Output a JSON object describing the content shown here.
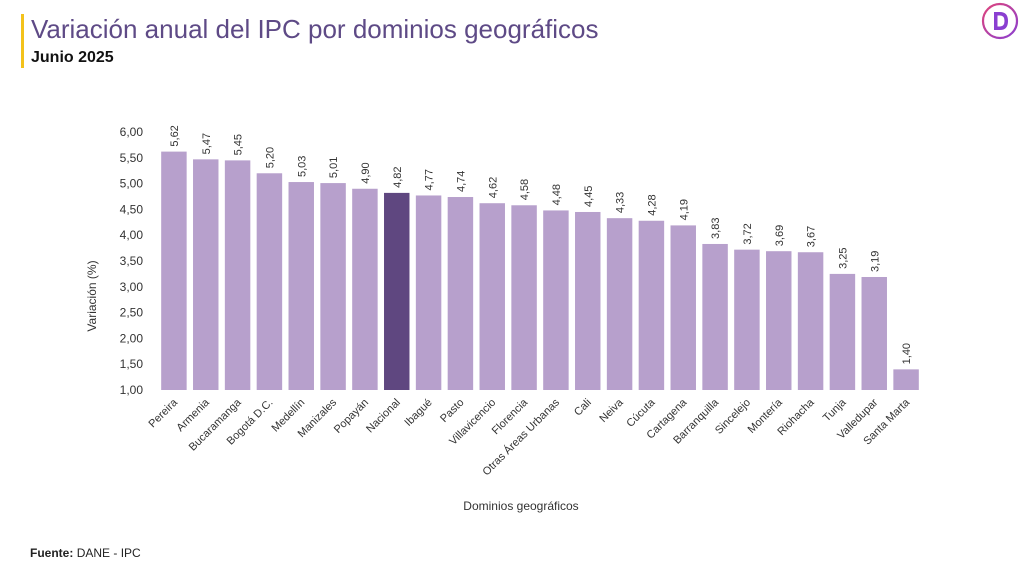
{
  "header": {
    "title": "Variación anual del IPC por dominios geográficos",
    "subtitle": "Junio 2025"
  },
  "footer": {
    "source_label": "Fuente:",
    "source_text": "DANE - IPC"
  },
  "logo": {
    "icon": "d-logo-icon",
    "colors": [
      "#e0447a",
      "#8a3fd1"
    ]
  },
  "colors": {
    "bar": "#b7a0cc",
    "highlight": "#5f4780",
    "title": "#5e4a86",
    "accent": "#f3c21b"
  },
  "chart_data": {
    "type": "bar",
    "xlabel": "Dominios geográficos",
    "ylabel": "Variación (%)",
    "ylim": [
      1.0,
      6.0
    ],
    "yticks": [
      "1,00",
      "1,50",
      "2,00",
      "2,50",
      "3,00",
      "3,50",
      "4,00",
      "4,50",
      "5,00",
      "5,50",
      "6,00"
    ],
    "grid": false,
    "highlight_category": "Nacional",
    "categories": [
      "Pereira",
      "Armenia",
      "Bucaramanga",
      "Bogotá D.C.",
      "Medellín",
      "Manizales",
      "Popayán",
      "Nacional",
      "Ibagué",
      "Pasto",
      "Villavicencio",
      "Florencia",
      "Otras Áreas Urbanas",
      "Cali",
      "Neiva",
      "Cúcuta",
      "Cartagena",
      "Barranquilla",
      "Sincelejo",
      "Montería",
      "Riohacha",
      "Tunja",
      "Valledupar",
      "Santa Marta"
    ],
    "values": [
      5.62,
      5.47,
      5.45,
      5.2,
      5.03,
      5.01,
      4.9,
      4.82,
      4.77,
      4.74,
      4.62,
      4.58,
      4.48,
      4.45,
      4.33,
      4.28,
      4.19,
      3.83,
      3.72,
      3.69,
      3.67,
      3.25,
      3.19,
      1.4
    ],
    "value_labels": [
      "5,62",
      "5,47",
      "5,45",
      "5,20",
      "5,03",
      "5,01",
      "4,90",
      "4,82",
      "4,77",
      "4,74",
      "4,62",
      "4,58",
      "4,48",
      "4,45",
      "4,33",
      "4,28",
      "4,19",
      "3,83",
      "3,72",
      "3,69",
      "3,67",
      "3,25",
      "3,19",
      "1,40"
    ]
  }
}
